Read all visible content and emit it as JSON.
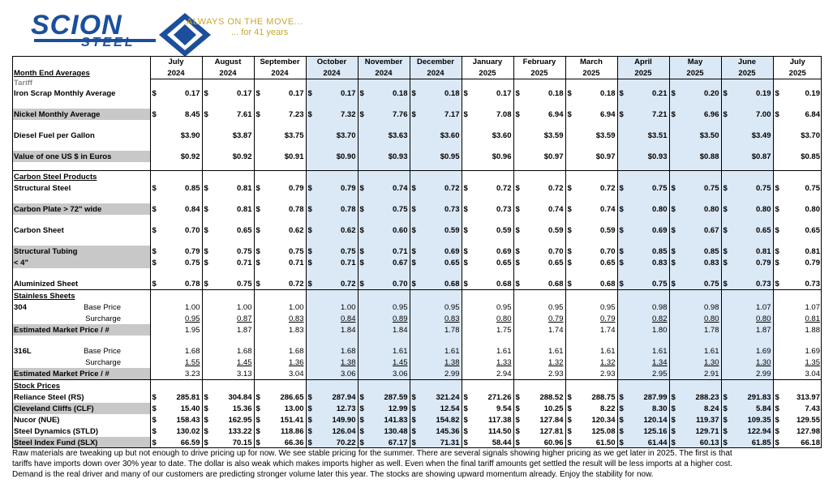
{
  "logo": {
    "word": "SCION",
    "sub": "STEEL",
    "tagline": "ALWAYS ON THE MOVE...",
    "years": "... for 41 years"
  },
  "colors": {
    "highlight": "#dbe8f5",
    "brand": "#1b4f9c",
    "tagline": "#c8a82e",
    "label_gray": "#c8c8c8"
  },
  "months": [
    {
      "m": "July",
      "y": "2024"
    },
    {
      "m": "August",
      "y": "2024"
    },
    {
      "m": "September",
      "y": "2024"
    },
    {
      "m": "October",
      "y": "2024"
    },
    {
      "m": "November",
      "y": "2024"
    },
    {
      "m": "December",
      "y": "2024"
    },
    {
      "m": "January",
      "y": "2025"
    },
    {
      "m": "February",
      "y": "2025"
    },
    {
      "m": "March",
      "y": "2025"
    },
    {
      "m": "April",
      "y": "2025"
    },
    {
      "m": "May",
      "y": "2025"
    },
    {
      "m": "June",
      "y": "2025"
    },
    {
      "m": "July",
      "y": "2025"
    }
  ],
  "sections": {
    "month_end": "Month End Averages",
    "tariff": "Tariff",
    "carbon": "Carbon Steel Products",
    "stainless": "Stainless Sheets",
    "stock": "Stock Prices"
  },
  "rows": {
    "iron": {
      "label": "Iron Scrap Monthly Average",
      "vals": [
        "0.17",
        "0.17",
        "0.17",
        "0.17",
        "0.18",
        "0.18",
        "0.17",
        "0.18",
        "0.18",
        "0.21",
        "0.20",
        "0.19",
        "0.19"
      ]
    },
    "nickel": {
      "label": "Nickel Monthly Average",
      "vals": [
        "8.45",
        "7.61",
        "7.23",
        "7.32",
        "7.76",
        "7.17",
        "7.08",
        "6.94",
        "6.94",
        "7.21",
        "6.96",
        "7.00",
        "6.84"
      ]
    },
    "diesel": {
      "label": "Diesel Fuel per Gallon",
      "vals": [
        "$3.90",
        "$3.87",
        "$3.75",
        "$3.70",
        "$3.63",
        "$3.60",
        "$3.60",
        "$3.59",
        "$3.59",
        "$3.51",
        "$3.50",
        "$3.49",
        "$3.70"
      ]
    },
    "euro": {
      "label": "Value of one US $ in Euros",
      "vals": [
        "$0.92",
        "$0.92",
        "$0.91",
        "$0.90",
        "$0.93",
        "$0.95",
        "$0.96",
        "$0.97",
        "$0.97",
        "$0.93",
        "$0.88",
        "$0.87",
        "$0.85"
      ]
    },
    "structural": {
      "label": "Structural Steel",
      "vals": [
        "0.85",
        "0.81",
        "0.79",
        "0.79",
        "0.74",
        "0.72",
        "0.72",
        "0.72",
        "0.72",
        "0.75",
        "0.75",
        "0.75",
        "0.75"
      ]
    },
    "plate": {
      "label": "Carbon Plate > 72\" wide",
      "vals": [
        "0.84",
        "0.81",
        "0.78",
        "0.78",
        "0.75",
        "0.73",
        "0.73",
        "0.74",
        "0.74",
        "0.80",
        "0.80",
        "0.80",
        "0.80"
      ]
    },
    "sheet": {
      "label": "Carbon Sheet",
      "vals": [
        "0.70",
        "0.65",
        "0.62",
        "0.62",
        "0.60",
        "0.59",
        "0.59",
        "0.59",
        "0.59",
        "0.69",
        "0.67",
        "0.65",
        "0.65"
      ]
    },
    "tubing": {
      "label": "Structural Tubing",
      "vals": [
        "0.79",
        "0.75",
        "0.75",
        "0.75",
        "0.71",
        "0.69",
        "0.69",
        "0.70",
        "0.70",
        "0.85",
        "0.85",
        "0.81",
        "0.81"
      ]
    },
    "tubing4": {
      "label": "< 4\"",
      "vals": [
        "0.75",
        "0.71",
        "0.71",
        "0.71",
        "0.67",
        "0.65",
        "0.65",
        "0.65",
        "0.65",
        "0.83",
        "0.83",
        "0.79",
        "0.79"
      ]
    },
    "alum": {
      "label": "Aluminized Sheet",
      "vals": [
        "0.78",
        "0.75",
        "0.72",
        "0.72",
        "0.70",
        "0.68",
        "0.68",
        "0.68",
        "0.68",
        "0.75",
        "0.75",
        "0.73",
        "0.73"
      ]
    },
    "s304base": {
      "label": "304",
      "sub": "Base Price",
      "vals": [
        "1.00",
        "1.00",
        "1.00",
        "1.00",
        "0.95",
        "0.95",
        "0.95",
        "0.95",
        "0.95",
        "0.98",
        "0.98",
        "1.07",
        "1.07"
      ]
    },
    "s304sur": {
      "sub": "Surcharge",
      "vals": [
        "0.95",
        "0.87",
        "0.83",
        "0.84",
        "0.89",
        "0.83",
        "0.80",
        "0.79",
        "0.79",
        "0.82",
        "0.80",
        "0.80",
        "0.81"
      ]
    },
    "s304est": {
      "label": "Estimated Market Price / #",
      "vals": [
        "1.95",
        "1.87",
        "1.83",
        "1.84",
        "1.84",
        "1.78",
        "1.75",
        "1.74",
        "1.74",
        "1.80",
        "1.78",
        "1.87",
        "1.88"
      ]
    },
    "s316base": {
      "label": "316L",
      "sub": "Base Price",
      "vals": [
        "1.68",
        "1.68",
        "1.68",
        "1.68",
        "1.61",
        "1.61",
        "1.61",
        "1.61",
        "1.61",
        "1.61",
        "1.61",
        "1.69",
        "1.69"
      ]
    },
    "s316sur": {
      "sub": "Surcharge",
      "vals": [
        "1.55",
        "1.45",
        "1.36",
        "1.38",
        "1.45",
        "1.38",
        "1.33",
        "1.32",
        "1.32",
        "1.34",
        "1.30",
        "1.30",
        "1.35"
      ]
    },
    "s316est": {
      "label": "Estimated Market Price / #",
      "vals": [
        "3.23",
        "3.13",
        "3.04",
        "3.06",
        "3.06",
        "2.99",
        "2.94",
        "2.93",
        "2.93",
        "2.95",
        "2.91",
        "2.99",
        "3.04"
      ]
    },
    "rs": {
      "label": "Reliance Steel (RS)",
      "vals": [
        "285.81",
        "304.84",
        "286.65",
        "287.94",
        "287.59",
        "321.24",
        "271.26",
        "288.52",
        "288.75",
        "287.99",
        "288.23",
        "291.83",
        "313.97"
      ]
    },
    "clf": {
      "label": "Cleveland Cliffs (CLF)",
      "vals": [
        "15.40",
        "15.36",
        "13.00",
        "12.73",
        "12.99",
        "12.54",
        "9.54",
        "10.25",
        "8.22",
        "8.30",
        "8.24",
        "5.84",
        "7.43"
      ]
    },
    "nue": {
      "label": "Nucor (NUE)",
      "vals": [
        "158.43",
        "162.95",
        "151.41",
        "149.90",
        "141.83",
        "154.82",
        "117.38",
        "127.84",
        "120.34",
        "120.14",
        "119.37",
        "109.35",
        "129.55"
      ]
    },
    "stld": {
      "label": "Steel Dynamics (STLD)",
      "vals": [
        "130.02",
        "133.22",
        "118.86",
        "126.04",
        "130.48",
        "145.36",
        "114.50",
        "127.81",
        "125.08",
        "125.16",
        "129.71",
        "122.94",
        "127.98"
      ]
    },
    "slx": {
      "label": "Steel Index Fund (SLX)",
      "vals": [
        "66.59",
        "70.15",
        "66.36",
        "70.22",
        "67.17",
        "71.31",
        "58.44",
        "60.96",
        "61.50",
        "61.44",
        "60.13",
        "61.85",
        "66.18"
      ]
    }
  },
  "dollar_sign": "$",
  "note_lines": [
    "Raw materials are tweaking up but not enough to drive pricing up for now. We see stable pricing for the summer. There are several signals showing higher pricing as we get later in 2025. The first is that",
    "tariffs have imports down over 30% year to date. The dollar is also weak which makes imports higher as well. Even when the final tariff amounts get settled the result will be less imports at a higher cost.",
    "Demand is the real driver and many of our customers are predicting stronger volume later this year. The stocks are showing upward momentum already. Enjoy the stability for now."
  ]
}
